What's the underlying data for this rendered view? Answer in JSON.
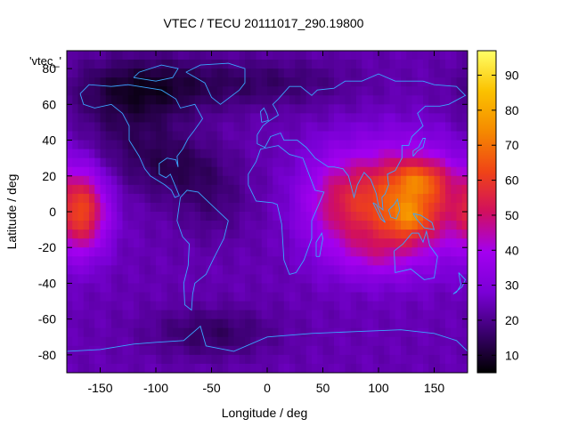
{
  "chart_data": {
    "type": "heatmap",
    "title": "VTEC / TECU 20111017_290.19800",
    "xlabel": "Longitude / deg",
    "ylabel": "Latitude / deg",
    "key_label": "'vtec_'",
    "xlim": [
      -180,
      180
    ],
    "ylim": [
      -90,
      90
    ],
    "x_ticks": [
      -150,
      -100,
      -50,
      0,
      50,
      100,
      150
    ],
    "y_ticks": [
      -80,
      -60,
      -40,
      -20,
      0,
      20,
      40,
      60,
      80
    ],
    "colorbar": {
      "range": [
        5,
        97
      ],
      "ticks": [
        10,
        20,
        30,
        40,
        50,
        60,
        70,
        80,
        90
      ]
    },
    "grid": false,
    "grid_step_deg": 5,
    "overlay": "coastlines",
    "palette": [
      "#000000",
      "#3a006e",
      "#7a00d6",
      "#a300f0",
      "#d10f5e",
      "#f04416",
      "#f58a00",
      "#fbc200",
      "#ffff66"
    ],
    "background_level": 24,
    "features": [
      {
        "lon": 120,
        "lat": 5,
        "sx": 42,
        "sy": 21,
        "amp": 42
      },
      {
        "lon": 138,
        "lat": 18,
        "sx": 16,
        "sy": 7,
        "amp": 16
      },
      {
        "lon": 128,
        "lat": -4,
        "sx": 12,
        "sy": 7,
        "amp": 13
      },
      {
        "lon": 60,
        "lat": 5,
        "sx": 22,
        "sy": 20,
        "amp": 12
      },
      {
        "lon": 95,
        "lat": -25,
        "sx": 24,
        "sy": 9,
        "amp": 8
      },
      {
        "lon": -165,
        "lat": 0,
        "sx": 15,
        "sy": 16,
        "amp": 30
      },
      {
        "lon": -125,
        "lat": 45,
        "sx": 35,
        "sy": 20,
        "amp": -8
      },
      {
        "lon": -80,
        "lat": 25,
        "sx": 30,
        "sy": 12,
        "amp": -8
      },
      {
        "lon": -50,
        "lat": 5,
        "sx": 25,
        "sy": 15,
        "amp": -6
      },
      {
        "lon": -110,
        "lat": 70,
        "sx": 45,
        "sy": 12,
        "amp": -12
      },
      {
        "lon": 0,
        "lat": 72,
        "sx": 55,
        "sy": 10,
        "amp": -8
      },
      {
        "lon": -50,
        "lat": -68,
        "sx": 40,
        "sy": 10,
        "amp": -9
      }
    ],
    "coastlines": [
      {
        "name": "north-america",
        "points": [
          [
            -168,
            66
          ],
          [
            -160,
            71
          ],
          [
            -140,
            70
          ],
          [
            -125,
            71
          ],
          [
            -95,
            68
          ],
          [
            -82,
            63
          ],
          [
            -78,
            58
          ],
          [
            -65,
            60
          ],
          [
            -58,
            52
          ],
          [
            -66,
            45
          ],
          [
            -71,
            41
          ],
          [
            -76,
            35
          ],
          [
            -81,
            31
          ],
          [
            -80,
            25
          ],
          [
            -82,
            29
          ],
          [
            -90,
            30
          ],
          [
            -97,
            27
          ],
          [
            -97,
            21
          ],
          [
            -91,
            19
          ],
          [
            -87,
            21
          ],
          [
            -83,
            15
          ],
          [
            -79,
            9
          ],
          [
            -83,
            8
          ],
          [
            -86,
            12
          ],
          [
            -92,
            15
          ],
          [
            -105,
            20
          ],
          [
            -110,
            24
          ],
          [
            -115,
            31
          ],
          [
            -118,
            34
          ],
          [
            -124,
            40
          ],
          [
            -124,
            48
          ],
          [
            -130,
            55
          ],
          [
            -140,
            60
          ],
          [
            -155,
            58
          ],
          [
            -165,
            60
          ],
          [
            -168,
            66
          ]
        ]
      },
      {
        "name": "greenland",
        "points": [
          [
            -73,
            78
          ],
          [
            -60,
            82
          ],
          [
            -35,
            83
          ],
          [
            -20,
            80
          ],
          [
            -20,
            72
          ],
          [
            -25,
            68
          ],
          [
            -42,
            60
          ],
          [
            -50,
            64
          ],
          [
            -56,
            72
          ],
          [
            -70,
            77
          ],
          [
            -73,
            78
          ]
        ]
      },
      {
        "name": "south-america",
        "points": [
          [
            -78,
            8
          ],
          [
            -72,
            12
          ],
          [
            -62,
            11
          ],
          [
            -52,
            5
          ],
          [
            -35,
            -5
          ],
          [
            -39,
            -15
          ],
          [
            -48,
            -26
          ],
          [
            -55,
            -35
          ],
          [
            -65,
            -40
          ],
          [
            -67,
            -46
          ],
          [
            -68,
            -55
          ],
          [
            -74,
            -52
          ],
          [
            -75,
            -40
          ],
          [
            -71,
            -30
          ],
          [
            -70,
            -18
          ],
          [
            -76,
            -14
          ],
          [
            -81,
            -5
          ],
          [
            -78,
            8
          ]
        ]
      },
      {
        "name": "africa-eurasia",
        "points": [
          [
            -17,
            15
          ],
          [
            -10,
            6
          ],
          [
            5,
            5
          ],
          [
            9,
            4
          ],
          [
            13,
            -7
          ],
          [
            15,
            -27
          ],
          [
            20,
            -35
          ],
          [
            26,
            -34
          ],
          [
            33,
            -27
          ],
          [
            40,
            -15
          ],
          [
            40,
            -5
          ],
          [
            51,
            11
          ],
          [
            43,
            12
          ],
          [
            32,
            30
          ],
          [
            20,
            32
          ],
          [
            10,
            37
          ],
          [
            -6,
            35
          ],
          [
            -10,
            28
          ],
          [
            -17,
            21
          ],
          [
            -17,
            15
          ]
        ]
      },
      {
        "name": "europe-asia",
        "points": [
          [
            -9,
            43
          ],
          [
            -9,
            38
          ],
          [
            -2,
            36
          ],
          [
            3,
            42
          ],
          [
            12,
            44
          ],
          [
            15,
            40
          ],
          [
            20,
            40
          ],
          [
            27,
            40
          ],
          [
            35,
            36
          ],
          [
            43,
            30
          ],
          [
            55,
            25
          ],
          [
            60,
            25
          ],
          [
            68,
            24
          ],
          [
            73,
            20
          ],
          [
            78,
            8
          ],
          [
            81,
            15
          ],
          [
            87,
            22
          ],
          [
            93,
            18
          ],
          [
            98,
            10
          ],
          [
            100,
            3
          ],
          [
            104,
            1
          ],
          [
            103,
            8
          ],
          [
            106,
            10
          ],
          [
            109,
            15
          ],
          [
            108,
            21
          ],
          [
            115,
            23
          ],
          [
            121,
            30
          ],
          [
            121,
            37
          ],
          [
            127,
            37
          ],
          [
            130,
            42
          ],
          [
            140,
            48
          ],
          [
            135,
            55
          ],
          [
            142,
            59
          ],
          [
            155,
            59
          ],
          [
            163,
            60
          ],
          [
            178,
            65
          ],
          [
            170,
            70
          ],
          [
            150,
            71
          ],
          [
            140,
            73
          ],
          [
            115,
            73
          ],
          [
            100,
            77
          ],
          [
            85,
            73
          ],
          [
            70,
            73
          ],
          [
            60,
            69
          ],
          [
            45,
            68
          ],
          [
            40,
            65
          ],
          [
            30,
            70
          ],
          [
            20,
            70
          ],
          [
            10,
            63
          ],
          [
            5,
            60
          ],
          [
            8,
            57
          ],
          [
            10,
            54
          ],
          [
            0,
            50
          ],
          [
            -4,
            48
          ],
          [
            -9,
            43
          ]
        ]
      },
      {
        "name": "australia",
        "points": [
          [
            114,
            -22
          ],
          [
            122,
            -18
          ],
          [
            130,
            -12
          ],
          [
            136,
            -12
          ],
          [
            140,
            -17
          ],
          [
            143,
            -11
          ],
          [
            146,
            -19
          ],
          [
            153,
            -25
          ],
          [
            150,
            -37
          ],
          [
            141,
            -38
          ],
          [
            135,
            -35
          ],
          [
            129,
            -32
          ],
          [
            115,
            -34
          ],
          [
            114,
            -22
          ]
        ]
      },
      {
        "name": "antarctica",
        "points": [
          [
            -180,
            -78
          ],
          [
            -150,
            -77
          ],
          [
            -120,
            -74
          ],
          [
            -100,
            -73
          ],
          [
            -75,
            -72
          ],
          [
            -60,
            -64
          ],
          [
            -55,
            -75
          ],
          [
            -30,
            -78
          ],
          [
            0,
            -70
          ],
          [
            40,
            -68
          ],
          [
            80,
            -67
          ],
          [
            120,
            -66
          ],
          [
            150,
            -68
          ],
          [
            170,
            -72
          ],
          [
            180,
            -78
          ]
        ]
      },
      {
        "name": "britain",
        "points": [
          [
            -5,
            50
          ],
          [
            1,
            51
          ],
          [
            0,
            54
          ],
          [
            -3,
            58
          ],
          [
            -6,
            56
          ],
          [
            -5,
            50
          ]
        ]
      },
      {
        "name": "japan",
        "points": [
          [
            131,
            31
          ],
          [
            135,
            34
          ],
          [
            140,
            36
          ],
          [
            142,
            41
          ],
          [
            140,
            41
          ],
          [
            136,
            36
          ],
          [
            131,
            34
          ],
          [
            131,
            31
          ]
        ]
      },
      {
        "name": "madagascar",
        "points": [
          [
            44,
            -25
          ],
          [
            47,
            -25
          ],
          [
            50,
            -15
          ],
          [
            49,
            -12
          ],
          [
            44,
            -17
          ],
          [
            44,
            -25
          ]
        ]
      },
      {
        "name": "borneo",
        "points": [
          [
            109,
            1
          ],
          [
            111,
            -3
          ],
          [
            116,
            -4
          ],
          [
            119,
            1
          ],
          [
            117,
            7
          ],
          [
            114,
            4
          ],
          [
            109,
            1
          ]
        ]
      },
      {
        "name": "sumatra",
        "points": [
          [
            95,
            5
          ],
          [
            98,
            4
          ],
          [
            106,
            -6
          ],
          [
            102,
            -4
          ],
          [
            95,
            5
          ]
        ]
      },
      {
        "name": "new-guinea",
        "points": [
          [
            131,
            -1
          ],
          [
            138,
            -2
          ],
          [
            148,
            -6
          ],
          [
            150,
            -10
          ],
          [
            141,
            -9
          ],
          [
            134,
            -4
          ],
          [
            131,
            -1
          ]
        ]
      },
      {
        "name": "new-zealand",
        "points": [
          [
            172,
            -34
          ],
          [
            178,
            -38
          ],
          [
            175,
            -42
          ],
          [
            167,
            -46
          ],
          [
            170,
            -45
          ],
          [
            174,
            -41
          ],
          [
            172,
            -34
          ]
        ]
      },
      {
        "name": "arctic-islands",
        "points": [
          [
            -120,
            75
          ],
          [
            -100,
            73
          ],
          [
            -85,
            75
          ],
          [
            -80,
            80
          ],
          [
            -95,
            82
          ],
          [
            -115,
            78
          ],
          [
            -120,
            75
          ]
        ]
      }
    ]
  }
}
